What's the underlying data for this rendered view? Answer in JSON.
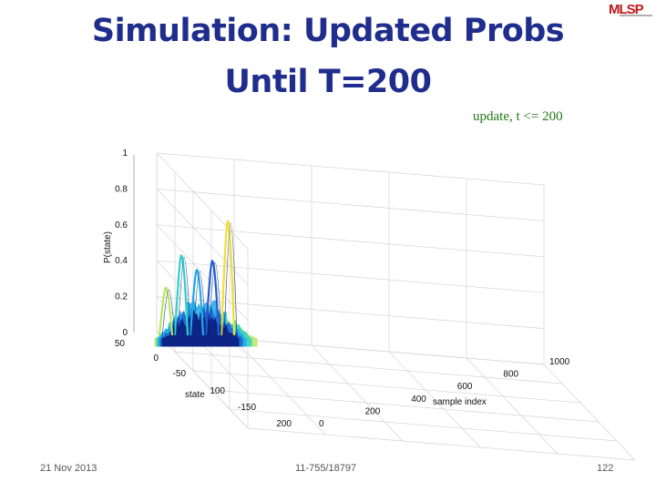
{
  "slide": {
    "title": "Simulation: Updated Probs Until T=200",
    "logo_text": "MLSP"
  },
  "footer": {
    "date": "21 Nov 2013",
    "course": "11-755/18797",
    "page": "122"
  },
  "chart_data": {
    "type": "surface-3d",
    "title": "update, t <= 200",
    "zlabel": "P(state)",
    "ylabel": "state",
    "xlabel": "sample index",
    "z_ticks": [
      "0",
      "0.2",
      "0.4",
      "0.6",
      "0.8",
      "1"
    ],
    "state_ticks": [
      "50",
      "0",
      "-50",
      "100",
      "-150",
      "200"
    ],
    "sample_ticks": [
      "0",
      "200",
      "400",
      "600",
      "800",
      "1000"
    ],
    "zlim": [
      0,
      1
    ],
    "sample_range": [
      0,
      1000
    ],
    "grid": true,
    "colors": [
      "#0a1a78",
      "#1f5fd0",
      "#1fa8e8",
      "#30d0c8",
      "#b8e860",
      "#f0e030"
    ],
    "peaks": [
      {
        "sample": 0,
        "state": -35,
        "p": 0.62
      },
      {
        "sample": 60,
        "state": -30,
        "p": 0.4
      },
      {
        "sample": 100,
        "state": -28,
        "p": 0.35
      },
      {
        "sample": 140,
        "state": -25,
        "p": 0.43
      },
      {
        "sample": 180,
        "state": -22,
        "p": 0.25
      }
    ]
  }
}
